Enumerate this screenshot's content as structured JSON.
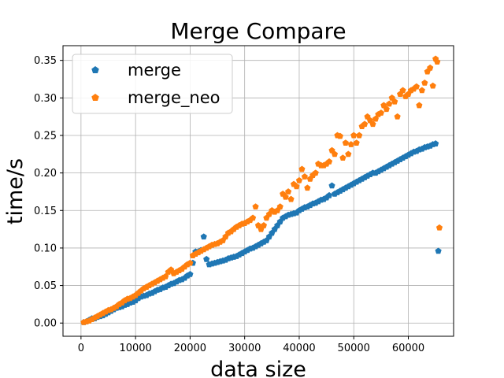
{
  "chart_data": {
    "type": "scatter",
    "title": "Merge Compare",
    "xlabel": "data size",
    "ylabel": "time/s",
    "xlim": [
      -3300,
      68300
    ],
    "ylim": [
      -0.0176,
      0.3696
    ],
    "xticks": [
      0,
      10000,
      20000,
      30000,
      40000,
      50000,
      60000
    ],
    "yticks": [
      0.0,
      0.05,
      0.1,
      0.15,
      0.2,
      0.25,
      0.3,
      0.35
    ],
    "x_tick_labels": [
      "0",
      "10000",
      "20000",
      "30000",
      "40000",
      "50000",
      "60000"
    ],
    "y_tick_labels": [
      "0.00",
      "0.05",
      "0.10",
      "0.15",
      "0.20",
      "0.25",
      "0.30",
      "0.35"
    ],
    "grid": true,
    "legend_position": "top-left",
    "marker": "pentagon",
    "series": [
      {
        "name": "merge",
        "color": "#1f77b4",
        "points": [
          [
            500,
            0.001
          ],
          [
            1000,
            0.002
          ],
          [
            1500,
            0.004
          ],
          [
            2000,
            0.006
          ],
          [
            2500,
            0.006
          ],
          [
            3000,
            0.008
          ],
          [
            3500,
            0.009
          ],
          [
            4000,
            0.01
          ],
          [
            4500,
            0.012
          ],
          [
            5000,
            0.014
          ],
          [
            5500,
            0.016
          ],
          [
            6000,
            0.018
          ],
          [
            6500,
            0.02
          ],
          [
            7000,
            0.021
          ],
          [
            7500,
            0.022
          ],
          [
            8000,
            0.024
          ],
          [
            8500,
            0.025
          ],
          [
            9000,
            0.027
          ],
          [
            9500,
            0.028
          ],
          [
            10000,
            0.03
          ],
          [
            10500,
            0.033
          ],
          [
            11000,
            0.035
          ],
          [
            11500,
            0.036
          ],
          [
            12000,
            0.037
          ],
          [
            12500,
            0.039
          ],
          [
            13000,
            0.04
          ],
          [
            13500,
            0.042
          ],
          [
            14000,
            0.044
          ],
          [
            14500,
            0.045
          ],
          [
            15000,
            0.047
          ],
          [
            15500,
            0.048
          ],
          [
            16000,
            0.05
          ],
          [
            16500,
            0.052
          ],
          [
            17000,
            0.053
          ],
          [
            17500,
            0.055
          ],
          [
            18000,
            0.057
          ],
          [
            18500,
            0.058
          ],
          [
            19000,
            0.06
          ],
          [
            19500,
            0.063
          ],
          [
            20000,
            0.065
          ],
          [
            20500,
            0.08
          ],
          [
            21000,
            0.095
          ],
          [
            21500,
            0.095
          ],
          [
            22000,
            0.097
          ],
          [
            22500,
            0.115
          ],
          [
            23000,
            0.085
          ],
          [
            23500,
            0.078
          ],
          [
            24000,
            0.079
          ],
          [
            24500,
            0.08
          ],
          [
            25000,
            0.081
          ],
          [
            25500,
            0.082
          ],
          [
            26000,
            0.083
          ],
          [
            26500,
            0.084
          ],
          [
            27000,
            0.086
          ],
          [
            27500,
            0.087
          ],
          [
            28000,
            0.088
          ],
          [
            28500,
            0.089
          ],
          [
            29000,
            0.091
          ],
          [
            29500,
            0.093
          ],
          [
            30000,
            0.095
          ],
          [
            30500,
            0.097
          ],
          [
            31000,
            0.099
          ],
          [
            31500,
            0.1
          ],
          [
            32000,
            0.102
          ],
          [
            32500,
            0.104
          ],
          [
            33000,
            0.106
          ],
          [
            33500,
            0.108
          ],
          [
            34000,
            0.11
          ],
          [
            34500,
            0.115
          ],
          [
            35000,
            0.12
          ],
          [
            35500,
            0.125
          ],
          [
            36000,
            0.13
          ],
          [
            36500,
            0.135
          ],
          [
            37000,
            0.14
          ],
          [
            37500,
            0.142
          ],
          [
            38000,
            0.144
          ],
          [
            38500,
            0.145
          ],
          [
            39000,
            0.146
          ],
          [
            39500,
            0.147
          ],
          [
            40000,
            0.15
          ],
          [
            40500,
            0.152
          ],
          [
            41000,
            0.154
          ],
          [
            41500,
            0.155
          ],
          [
            42000,
            0.157
          ],
          [
            42500,
            0.159
          ],
          [
            43000,
            0.16
          ],
          [
            43500,
            0.162
          ],
          [
            44000,
            0.164
          ],
          [
            44500,
            0.165
          ],
          [
            45000,
            0.167
          ],
          [
            45500,
            0.17
          ],
          [
            46000,
            0.183
          ],
          [
            46500,
            0.172
          ],
          [
            47000,
            0.174
          ],
          [
            47500,
            0.176
          ],
          [
            48000,
            0.178
          ],
          [
            48500,
            0.18
          ],
          [
            49000,
            0.182
          ],
          [
            49500,
            0.184
          ],
          [
            50000,
            0.186
          ],
          [
            50500,
            0.188
          ],
          [
            51000,
            0.19
          ],
          [
            51500,
            0.192
          ],
          [
            52000,
            0.194
          ],
          [
            52500,
            0.196
          ],
          [
            53000,
            0.198
          ],
          [
            53500,
            0.2
          ],
          [
            54000,
            0.2
          ],
          [
            54500,
            0.202
          ],
          [
            55000,
            0.204
          ],
          [
            55500,
            0.206
          ],
          [
            56000,
            0.208
          ],
          [
            56500,
            0.21
          ],
          [
            57000,
            0.212
          ],
          [
            57500,
            0.214
          ],
          [
            58000,
            0.216
          ],
          [
            58500,
            0.218
          ],
          [
            59000,
            0.22
          ],
          [
            59500,
            0.222
          ],
          [
            60000,
            0.224
          ],
          [
            60500,
            0.226
          ],
          [
            61000,
            0.228
          ],
          [
            61500,
            0.229
          ],
          [
            62000,
            0.231
          ],
          [
            62500,
            0.232
          ],
          [
            63000,
            0.234
          ],
          [
            63500,
            0.235
          ],
          [
            64000,
            0.236
          ],
          [
            64500,
            0.238
          ],
          [
            65000,
            0.239
          ],
          [
            65500,
            0.096
          ]
        ]
      },
      {
        "name": "merge_neo",
        "color": "#ff7f0e",
        "points": [
          [
            500,
            0.001
          ],
          [
            1000,
            0.002
          ],
          [
            1500,
            0.003
          ],
          [
            2000,
            0.005
          ],
          [
            2500,
            0.007
          ],
          [
            3000,
            0.009
          ],
          [
            3500,
            0.011
          ],
          [
            4000,
            0.013
          ],
          [
            4500,
            0.015
          ],
          [
            5000,
            0.017
          ],
          [
            5500,
            0.018
          ],
          [
            6000,
            0.02
          ],
          [
            6500,
            0.022
          ],
          [
            7000,
            0.025
          ],
          [
            7500,
            0.027
          ],
          [
            8000,
            0.03
          ],
          [
            8500,
            0.032
          ],
          [
            9000,
            0.033
          ],
          [
            9500,
            0.035
          ],
          [
            10000,
            0.037
          ],
          [
            10500,
            0.04
          ],
          [
            11000,
            0.043
          ],
          [
            11500,
            0.046
          ],
          [
            12000,
            0.048
          ],
          [
            12500,
            0.05
          ],
          [
            13000,
            0.052
          ],
          [
            13500,
            0.054
          ],
          [
            14000,
            0.056
          ],
          [
            14500,
            0.058
          ],
          [
            15000,
            0.06
          ],
          [
            15500,
            0.062
          ],
          [
            16000,
            0.068
          ],
          [
            16500,
            0.071
          ],
          [
            17000,
            0.066
          ],
          [
            17500,
            0.068
          ],
          [
            18000,
            0.07
          ],
          [
            18500,
            0.072
          ],
          [
            19000,
            0.075
          ],
          [
            19500,
            0.078
          ],
          [
            20000,
            0.08
          ],
          [
            20500,
            0.09
          ],
          [
            21000,
            0.092
          ],
          [
            21500,
            0.094
          ],
          [
            22000,
            0.096
          ],
          [
            22500,
            0.098
          ],
          [
            23000,
            0.1
          ],
          [
            23500,
            0.102
          ],
          [
            24000,
            0.104
          ],
          [
            24500,
            0.105
          ],
          [
            25000,
            0.106
          ],
          [
            25500,
            0.108
          ],
          [
            26000,
            0.11
          ],
          [
            26500,
            0.115
          ],
          [
            27000,
            0.12
          ],
          [
            27500,
            0.122
          ],
          [
            28000,
            0.125
          ],
          [
            28500,
            0.128
          ],
          [
            29000,
            0.13
          ],
          [
            29500,
            0.132
          ],
          [
            30000,
            0.133
          ],
          [
            30500,
            0.135
          ],
          [
            31000,
            0.137
          ],
          [
            31500,
            0.14
          ],
          [
            32000,
            0.155
          ],
          [
            32500,
            0.13
          ],
          [
            33000,
            0.125
          ],
          [
            33500,
            0.13
          ],
          [
            34000,
            0.14
          ],
          [
            34500,
            0.145
          ],
          [
            35000,
            0.15
          ],
          [
            35500,
            0.148
          ],
          [
            36000,
            0.15
          ],
          [
            36500,
            0.155
          ],
          [
            37000,
            0.172
          ],
          [
            37500,
            0.168
          ],
          [
            38000,
            0.175
          ],
          [
            38500,
            0.165
          ],
          [
            39000,
            0.185
          ],
          [
            39500,
            0.182
          ],
          [
            40000,
            0.19
          ],
          [
            40500,
            0.205
          ],
          [
            41000,
            0.195
          ],
          [
            41500,
            0.18
          ],
          [
            42000,
            0.192
          ],
          [
            42500,
            0.197
          ],
          [
            43000,
            0.2
          ],
          [
            43500,
            0.212
          ],
          [
            44000,
            0.21
          ],
          [
            44500,
            0.21
          ],
          [
            45000,
            0.212
          ],
          [
            45500,
            0.215
          ],
          [
            46000,
            0.23
          ],
          [
            46500,
            0.225
          ],
          [
            47000,
            0.25
          ],
          [
            47500,
            0.249
          ],
          [
            48000,
            0.22
          ],
          [
            48500,
            0.24
          ],
          [
            49000,
            0.225
          ],
          [
            49500,
            0.238
          ],
          [
            50000,
            0.25
          ],
          [
            50500,
            0.24
          ],
          [
            51000,
            0.25
          ],
          [
            51500,
            0.262
          ],
          [
            52000,
            0.265
          ],
          [
            52500,
            0.275
          ],
          [
            53000,
            0.27
          ],
          [
            53500,
            0.265
          ],
          [
            54000,
            0.272
          ],
          [
            54500,
            0.278
          ],
          [
            55000,
            0.28
          ],
          [
            55500,
            0.29
          ],
          [
            56000,
            0.285
          ],
          [
            56500,
            0.292
          ],
          [
            57000,
            0.3
          ],
          [
            57500,
            0.295
          ],
          [
            58000,
            0.275
          ],
          [
            58500,
            0.305
          ],
          [
            59000,
            0.31
          ],
          [
            59500,
            0.302
          ],
          [
            60000,
            0.305
          ],
          [
            60500,
            0.31
          ],
          [
            61000,
            0.312
          ],
          [
            61500,
            0.315
          ],
          [
            62000,
            0.29
          ],
          [
            62500,
            0.31
          ],
          [
            63000,
            0.32
          ],
          [
            63500,
            0.335
          ],
          [
            64000,
            0.34
          ],
          [
            64500,
            0.316
          ],
          [
            65000,
            0.352
          ],
          [
            65300,
            0.348
          ],
          [
            65700,
            0.127
          ]
        ]
      }
    ]
  }
}
